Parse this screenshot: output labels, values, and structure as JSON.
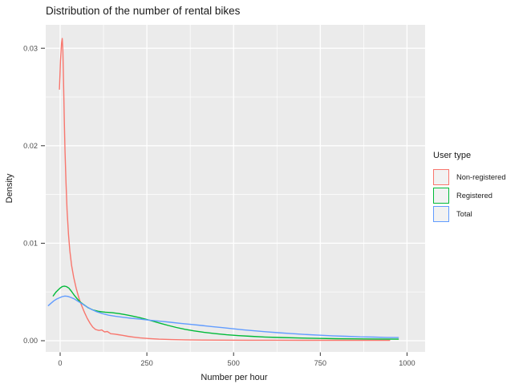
{
  "title": "Distribution of the number of rental bikes",
  "axes": {
    "x": {
      "label": "Number per hour",
      "ticks": [
        {
          "value": 0,
          "label": "0"
        },
        {
          "value": 250,
          "label": "250"
        },
        {
          "value": 500,
          "label": "500"
        },
        {
          "value": 750,
          "label": "750"
        },
        {
          "value": 1000,
          "label": "1000"
        }
      ],
      "minor_ticks": [
        125,
        375,
        625,
        875
      ]
    },
    "y": {
      "label": "Density",
      "ticks": [
        {
          "value": 0,
          "label": "0.00"
        },
        {
          "value": 0.01,
          "label": "0.01"
        },
        {
          "value": 0.02,
          "label": "0.02"
        },
        {
          "value": 0.03,
          "label": "0.03"
        }
      ],
      "minor_ticks": [
        0.005,
        0.015,
        0.025
      ]
    }
  },
  "legend": {
    "title": "User type",
    "entries": [
      {
        "label": "Non-registered",
        "color": "#F8766D"
      },
      {
        "label": "Registered",
        "color": "#00BA38"
      },
      {
        "label": "Total",
        "color": "#619CFF"
      }
    ]
  },
  "colors": {
    "panel_background": "#EBEBEB",
    "grid": "#FFFFFF",
    "tick_mark": "#333333",
    "tick_text": "#4d4d4d",
    "legend_key_fill": "#F2F2F2"
  },
  "chart_data": {
    "type": "line",
    "subtype": "density",
    "title": "Distribution of the number of rental bikes",
    "xlabel": "Number per hour",
    "ylabel": "Density",
    "xlim": [
      -41.6,
      1052.2
    ],
    "ylim": [
      -0.00115,
      0.0324
    ],
    "grid": "on",
    "legend_position": "right",
    "series": [
      {
        "name": "Non-registered",
        "color": "#F8766D",
        "points": [
          [
            -2,
            0.0258
          ],
          [
            1,
            0.0287
          ],
          [
            4,
            0.0305
          ],
          [
            6,
            0.031
          ],
          [
            8,
            0.0297
          ],
          [
            10,
            0.0262
          ],
          [
            12,
            0.0225
          ],
          [
            14,
            0.0196
          ],
          [
            17,
            0.0162
          ],
          [
            20,
            0.0134
          ],
          [
            24,
            0.0109
          ],
          [
            28,
            0.0092
          ],
          [
            33,
            0.0077
          ],
          [
            39,
            0.0065
          ],
          [
            46,
            0.0054
          ],
          [
            54,
            0.0044
          ],
          [
            62,
            0.0036
          ],
          [
            70,
            0.0029
          ],
          [
            78,
            0.0023
          ],
          [
            86,
            0.0018
          ],
          [
            94,
            0.0014
          ],
          [
            102,
            0.00115
          ],
          [
            112,
            0.00105
          ],
          [
            120,
            0.0011
          ],
          [
            128,
            0.0009
          ],
          [
            136,
            0.00095
          ],
          [
            146,
            0.00072
          ],
          [
            156,
            0.00068
          ],
          [
            168,
            0.00062
          ],
          [
            180,
            0.00055
          ],
          [
            195,
            0.00045
          ],
          [
            210,
            0.00038
          ],
          [
            230,
            0.0003
          ],
          [
            255,
            0.00022
          ],
          [
            285,
            0.00016
          ],
          [
            320,
            0.00012
          ],
          [
            360,
            9e-05
          ],
          [
            410,
            7e-05
          ],
          [
            470,
            6e-05
          ],
          [
            540,
            5e-05
          ],
          [
            620,
            5e-05
          ],
          [
            700,
            4e-05
          ],
          [
            790,
            4e-05
          ],
          [
            880,
            4e-05
          ],
          [
            950,
            4e-05
          ]
        ]
      },
      {
        "name": "Registered",
        "color": "#00BA38",
        "points": [
          [
            -20,
            0.0046
          ],
          [
            -13,
            0.00495
          ],
          [
            -6,
            0.0052
          ],
          [
            0,
            0.0054
          ],
          [
            6,
            0.00555
          ],
          [
            12,
            0.0056
          ],
          [
            18,
            0.00555
          ],
          [
            25,
            0.0054
          ],
          [
            32,
            0.0051
          ],
          [
            40,
            0.0047
          ],
          [
            48,
            0.00435
          ],
          [
            57,
            0.004
          ],
          [
            68,
            0.0037
          ],
          [
            80,
            0.0034
          ],
          [
            95,
            0.00315
          ],
          [
            112,
            0.003
          ],
          [
            130,
            0.00293
          ],
          [
            150,
            0.00287
          ],
          [
            170,
            0.00278
          ],
          [
            190,
            0.00266
          ],
          [
            210,
            0.00252
          ],
          [
            230,
            0.00236
          ],
          [
            250,
            0.00218
          ],
          [
            270,
            0.00198
          ],
          [
            290,
            0.00178
          ],
          [
            312,
            0.00156
          ],
          [
            335,
            0.00136
          ],
          [
            360,
            0.00117
          ],
          [
            385,
            0.00101
          ],
          [
            415,
            0.00086
          ],
          [
            445,
            0.00073
          ],
          [
            480,
            0.00061
          ],
          [
            515,
            0.00052
          ],
          [
            550,
            0.00045
          ],
          [
            590,
            0.00038
          ],
          [
            635,
            0.00033
          ],
          [
            685,
            0.00028
          ],
          [
            740,
            0.00024
          ],
          [
            795,
            0.00021
          ],
          [
            850,
            0.00019
          ],
          [
            910,
            0.00017
          ],
          [
            975,
            0.00016
          ]
        ]
      },
      {
        "name": "Total",
        "color": "#619CFF",
        "points": [
          [
            -34,
            0.0036
          ],
          [
            -26,
            0.00385
          ],
          [
            -18,
            0.0041
          ],
          [
            -10,
            0.00428
          ],
          [
            -2,
            0.0044
          ],
          [
            6,
            0.00452
          ],
          [
            14,
            0.00458
          ],
          [
            22,
            0.00455
          ],
          [
            30,
            0.00445
          ],
          [
            40,
            0.0043
          ],
          [
            50,
            0.00408
          ],
          [
            62,
            0.00382
          ],
          [
            75,
            0.00352
          ],
          [
            90,
            0.00322
          ],
          [
            105,
            0.00298
          ],
          [
            122,
            0.00278
          ],
          [
            140,
            0.00262
          ],
          [
            160,
            0.0025
          ],
          [
            182,
            0.0024
          ],
          [
            205,
            0.0023
          ],
          [
            230,
            0.00221
          ],
          [
            258,
            0.00211
          ],
          [
            288,
            0.002
          ],
          [
            318,
            0.00189
          ],
          [
            348,
            0.00178
          ],
          [
            378,
            0.00167
          ],
          [
            408,
            0.00156
          ],
          [
            438,
            0.00145
          ],
          [
            468,
            0.00134
          ],
          [
            498,
            0.00123
          ],
          [
            528,
            0.00112
          ],
          [
            558,
            0.00102
          ],
          [
            592,
            0.00092
          ],
          [
            628,
            0.00082
          ],
          [
            665,
            0.00073
          ],
          [
            705,
            0.00064
          ],
          [
            745,
            0.00057
          ],
          [
            785,
            0.0005
          ],
          [
            825,
            0.00045
          ],
          [
            865,
            0.0004
          ],
          [
            905,
            0.00037
          ],
          [
            940,
            0.00034
          ],
          [
            975,
            0.00032
          ]
        ]
      }
    ]
  }
}
